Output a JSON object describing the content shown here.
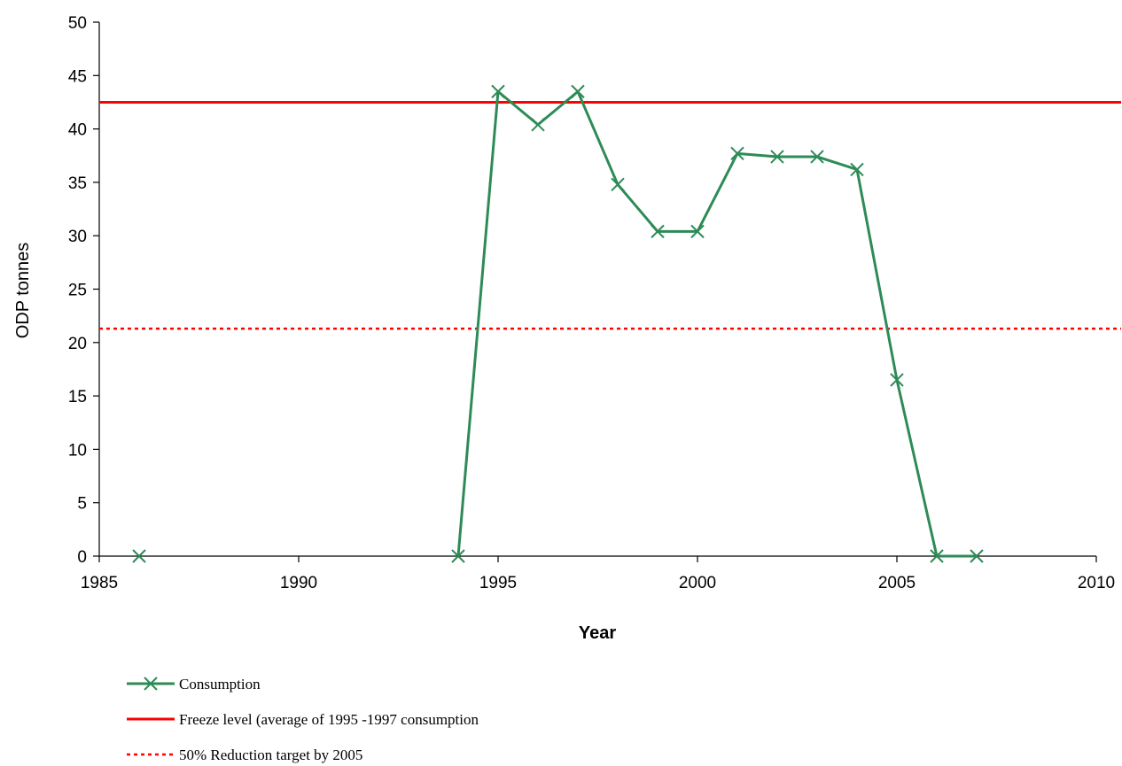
{
  "chart_data": {
    "type": "line",
    "title": "",
    "xlabel": "Year",
    "ylabel": "ODP tonnes",
    "xlim": [
      1985,
      2010
    ],
    "ylim": [
      0,
      50
    ],
    "xticks": [
      1985,
      1990,
      1995,
      2000,
      2005,
      2010
    ],
    "yticks": [
      0,
      5,
      10,
      15,
      20,
      25,
      30,
      35,
      40,
      45,
      50
    ],
    "grid": false,
    "legend_position": "bottom",
    "series": [
      {
        "name": "Consumption",
        "kind": "line-with-x-markers",
        "color": "#2e8b57",
        "points": [
          {
            "x": 1986,
            "y": 0,
            "connected": false
          },
          {
            "x": 1994,
            "y": 0,
            "connected": true
          },
          {
            "x": 1995,
            "y": 43.5,
            "connected": true
          },
          {
            "x": 1996,
            "y": 40.4,
            "connected": true
          },
          {
            "x": 1997,
            "y": 43.5,
            "connected": true
          },
          {
            "x": 1998,
            "y": 34.8,
            "connected": true
          },
          {
            "x": 1999,
            "y": 30.4,
            "connected": true
          },
          {
            "x": 2000,
            "y": 30.4,
            "connected": true
          },
          {
            "x": 2001,
            "y": 37.7,
            "connected": true
          },
          {
            "x": 2002,
            "y": 37.4,
            "connected": true
          },
          {
            "x": 2003,
            "y": 37.4,
            "connected": true
          },
          {
            "x": 2004,
            "y": 36.2,
            "connected": true
          },
          {
            "x": 2005,
            "y": 16.5,
            "connected": true
          },
          {
            "x": 2006,
            "y": 0,
            "connected": true
          },
          {
            "x": 2007,
            "y": 0,
            "connected": true
          }
        ]
      },
      {
        "name": "Freeze level (average of 1995 -1997 consumption",
        "kind": "horizontal-line-solid",
        "color": "#ff0000",
        "value": 42.5
      },
      {
        "name": "50% Reduction target by 2005",
        "kind": "horizontal-line-dotted",
        "color": "#ff0000",
        "value": 21.3
      }
    ]
  }
}
